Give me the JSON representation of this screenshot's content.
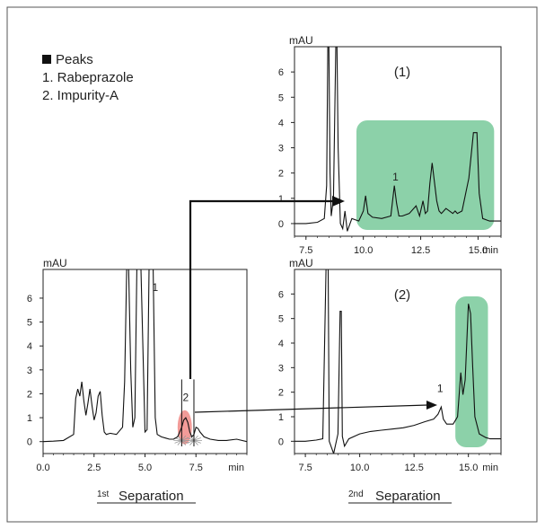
{
  "legend": {
    "title": "Peaks",
    "items": [
      "1. Rabeprazole",
      "2. Impurity-A"
    ]
  },
  "chart_data": [
    {
      "id": "first-separation",
      "type": "line",
      "title": "1st Separation",
      "xlabel": "min",
      "ylabel": "mAU",
      "xlim": [
        0,
        10
      ],
      "ylim": [
        -0.5,
        7.2
      ],
      "x_ticks": [
        0.0,
        2.5,
        5.0,
        7.5
      ],
      "x_tick_labels": [
        "0.0",
        "2.5",
        "5.0",
        "7.5"
      ],
      "y_ticks": [
        0,
        1,
        2,
        3,
        4,
        5,
        6
      ],
      "y_tick_labels": [
        "0",
        "1",
        "2",
        "3",
        "4",
        "5",
        "6"
      ],
      "peak_labels": [
        {
          "label": "1",
          "x": 5.5,
          "y": 6.3
        },
        {
          "label": "2",
          "x": 7.0,
          "y": 1.7
        }
      ],
      "cut_window": [
        6.8,
        7.4
      ],
      "highlight": {
        "color": "#f08a86",
        "x_range": [
          6.6,
          7.3
        ]
      },
      "series": [
        {
          "x": [
            0.0,
            0.5,
            1.0,
            1.5,
            1.6,
            1.7,
            1.8,
            1.9,
            2.0,
            2.1,
            2.2,
            2.3,
            2.4,
            2.5,
            2.6,
            2.7,
            2.8,
            2.9,
            3.0,
            3.1,
            3.3,
            3.6,
            3.9,
            4.0,
            4.1,
            4.15,
            4.2,
            4.3,
            4.4,
            4.5,
            4.6,
            4.8,
            5.0,
            5.1,
            5.2,
            5.3,
            5.4,
            5.5,
            5.6,
            5.8,
            6.0,
            6.2,
            6.4,
            6.6,
            6.8,
            6.9,
            7.0,
            7.1,
            7.2,
            7.3,
            7.4,
            7.5,
            7.6,
            7.7,
            7.9,
            8.2,
            8.6,
            9.0,
            9.5,
            10.0
          ],
          "y": [
            0.0,
            0.02,
            0.05,
            0.3,
            1.8,
            2.2,
            1.9,
            2.5,
            1.7,
            1.1,
            1.6,
            2.2,
            1.5,
            0.9,
            1.2,
            1.9,
            2.1,
            1.1,
            0.4,
            0.3,
            0.35,
            0.3,
            0.6,
            2.5,
            7.2,
            7.2,
            7.2,
            3.0,
            0.6,
            1.0,
            7.2,
            7.2,
            0.4,
            0.5,
            7.2,
            7.2,
            7.2,
            1.0,
            0.3,
            0.2,
            0.15,
            0.1,
            0.1,
            0.2,
            0.6,
            0.9,
            1.0,
            0.8,
            0.4,
            0.2,
            0.3,
            0.6,
            0.55,
            0.4,
            0.2,
            0.1,
            0.05,
            0.05,
            0.1,
            0.0
          ]
        }
      ]
    },
    {
      "id": "second-separation-1",
      "type": "line",
      "title": "(1)",
      "xlabel": "min",
      "ylabel": "mAU",
      "xlim": [
        7.0,
        16.0
      ],
      "ylim": [
        -0.5,
        7.0
      ],
      "x_ticks": [
        7.5,
        10.0,
        12.5,
        15.0
      ],
      "x_tick_labels": [
        "7.5",
        "10.0",
        "12.5",
        "15.0"
      ],
      "y_ticks": [
        0,
        1,
        2,
        3,
        4,
        5,
        6
      ],
      "y_tick_labels": [
        "0",
        "1",
        "2",
        "3",
        "4",
        "5",
        "6"
      ],
      "peak_labels": [
        {
          "label": "1",
          "x": 11.4,
          "y": 1.7
        }
      ],
      "highlight": {
        "color": "#78c99a",
        "x_range": [
          9.7,
          15.7
        ]
      },
      "series": [
        {
          "x": [
            7.0,
            7.5,
            8.0,
            8.3,
            8.4,
            8.45,
            8.5,
            8.55,
            8.6,
            8.7,
            8.8,
            8.85,
            8.9,
            9.0,
            9.1,
            9.2,
            9.3,
            9.5,
            9.8,
            10.0,
            10.1,
            10.2,
            10.4,
            10.8,
            11.2,
            11.35,
            11.45,
            11.55,
            11.7,
            12.0,
            12.3,
            12.45,
            12.6,
            12.7,
            12.8,
            12.9,
            13.0,
            13.2,
            13.3,
            13.4,
            13.6,
            13.9,
            14.0,
            14.1,
            14.3,
            14.6,
            14.8,
            14.95,
            15.05,
            15.2,
            15.5,
            16.0
          ],
          "y": [
            0.0,
            0.0,
            0.05,
            0.2,
            1.5,
            7.0,
            7.0,
            2.0,
            0.3,
            1.0,
            7.0,
            7.0,
            3.0,
            0.0,
            -0.2,
            0.5,
            -0.3,
            0.2,
            0.1,
            0.5,
            1.1,
            0.4,
            0.25,
            0.2,
            0.3,
            1.5,
            0.8,
            0.3,
            0.3,
            0.4,
            0.7,
            0.3,
            0.9,
            0.4,
            0.5,
            1.6,
            2.4,
            0.9,
            0.5,
            0.4,
            0.6,
            0.4,
            0.5,
            0.4,
            0.5,
            1.8,
            3.6,
            3.6,
            1.2,
            0.2,
            0.1,
            0.1
          ]
        }
      ]
    },
    {
      "id": "second-separation-2",
      "type": "line",
      "title": "(2)",
      "xlabel": "min",
      "ylabel": "mAU",
      "xlim": [
        7.0,
        16.5
      ],
      "ylim": [
        -0.5,
        7.0
      ],
      "x_ticks": [
        7.5,
        10.0,
        12.5,
        15.0
      ],
      "x_tick_labels": [
        "7.5",
        "10.0",
        "12.5",
        "15.0"
      ],
      "y_ticks": [
        0,
        1,
        2,
        3,
        4,
        5,
        6
      ],
      "y_tick_labels": [
        "0",
        "1",
        "2",
        "3",
        "4",
        "5",
        "6"
      ],
      "peak_labels": [
        {
          "label": "1",
          "x": 13.7,
          "y": 2.0
        }
      ],
      "highlight": {
        "color": "#78c99a",
        "x_range": [
          14.4,
          15.9
        ]
      },
      "series": [
        {
          "x": [
            7.0,
            7.5,
            8.0,
            8.3,
            8.45,
            8.5,
            8.55,
            8.6,
            8.8,
            9.0,
            9.1,
            9.15,
            9.2,
            9.3,
            9.5,
            10.0,
            10.5,
            11.0,
            11.5,
            12.0,
            12.5,
            13.0,
            13.4,
            13.6,
            13.75,
            13.85,
            14.0,
            14.3,
            14.5,
            14.65,
            14.75,
            14.85,
            15.0,
            15.1,
            15.2,
            15.3,
            15.5,
            15.8,
            16.0,
            16.5
          ],
          "y": [
            0.0,
            0.0,
            0.05,
            0.1,
            7.0,
            7.0,
            7.0,
            0.0,
            -0.5,
            0.3,
            5.3,
            5.3,
            0.2,
            -0.2,
            0.1,
            0.3,
            0.4,
            0.45,
            0.5,
            0.55,
            0.65,
            0.8,
            0.9,
            1.1,
            1.4,
            0.9,
            0.7,
            0.7,
            1.0,
            2.8,
            1.9,
            2.5,
            5.6,
            5.2,
            3.0,
            1.0,
            0.3,
            0.15,
            0.1,
            0.1
          ]
        }
      ]
    }
  ],
  "captions": {
    "first_sup": "1st",
    "first_text": "Separation",
    "second_sup": "2nd",
    "second_text": "Separation"
  }
}
